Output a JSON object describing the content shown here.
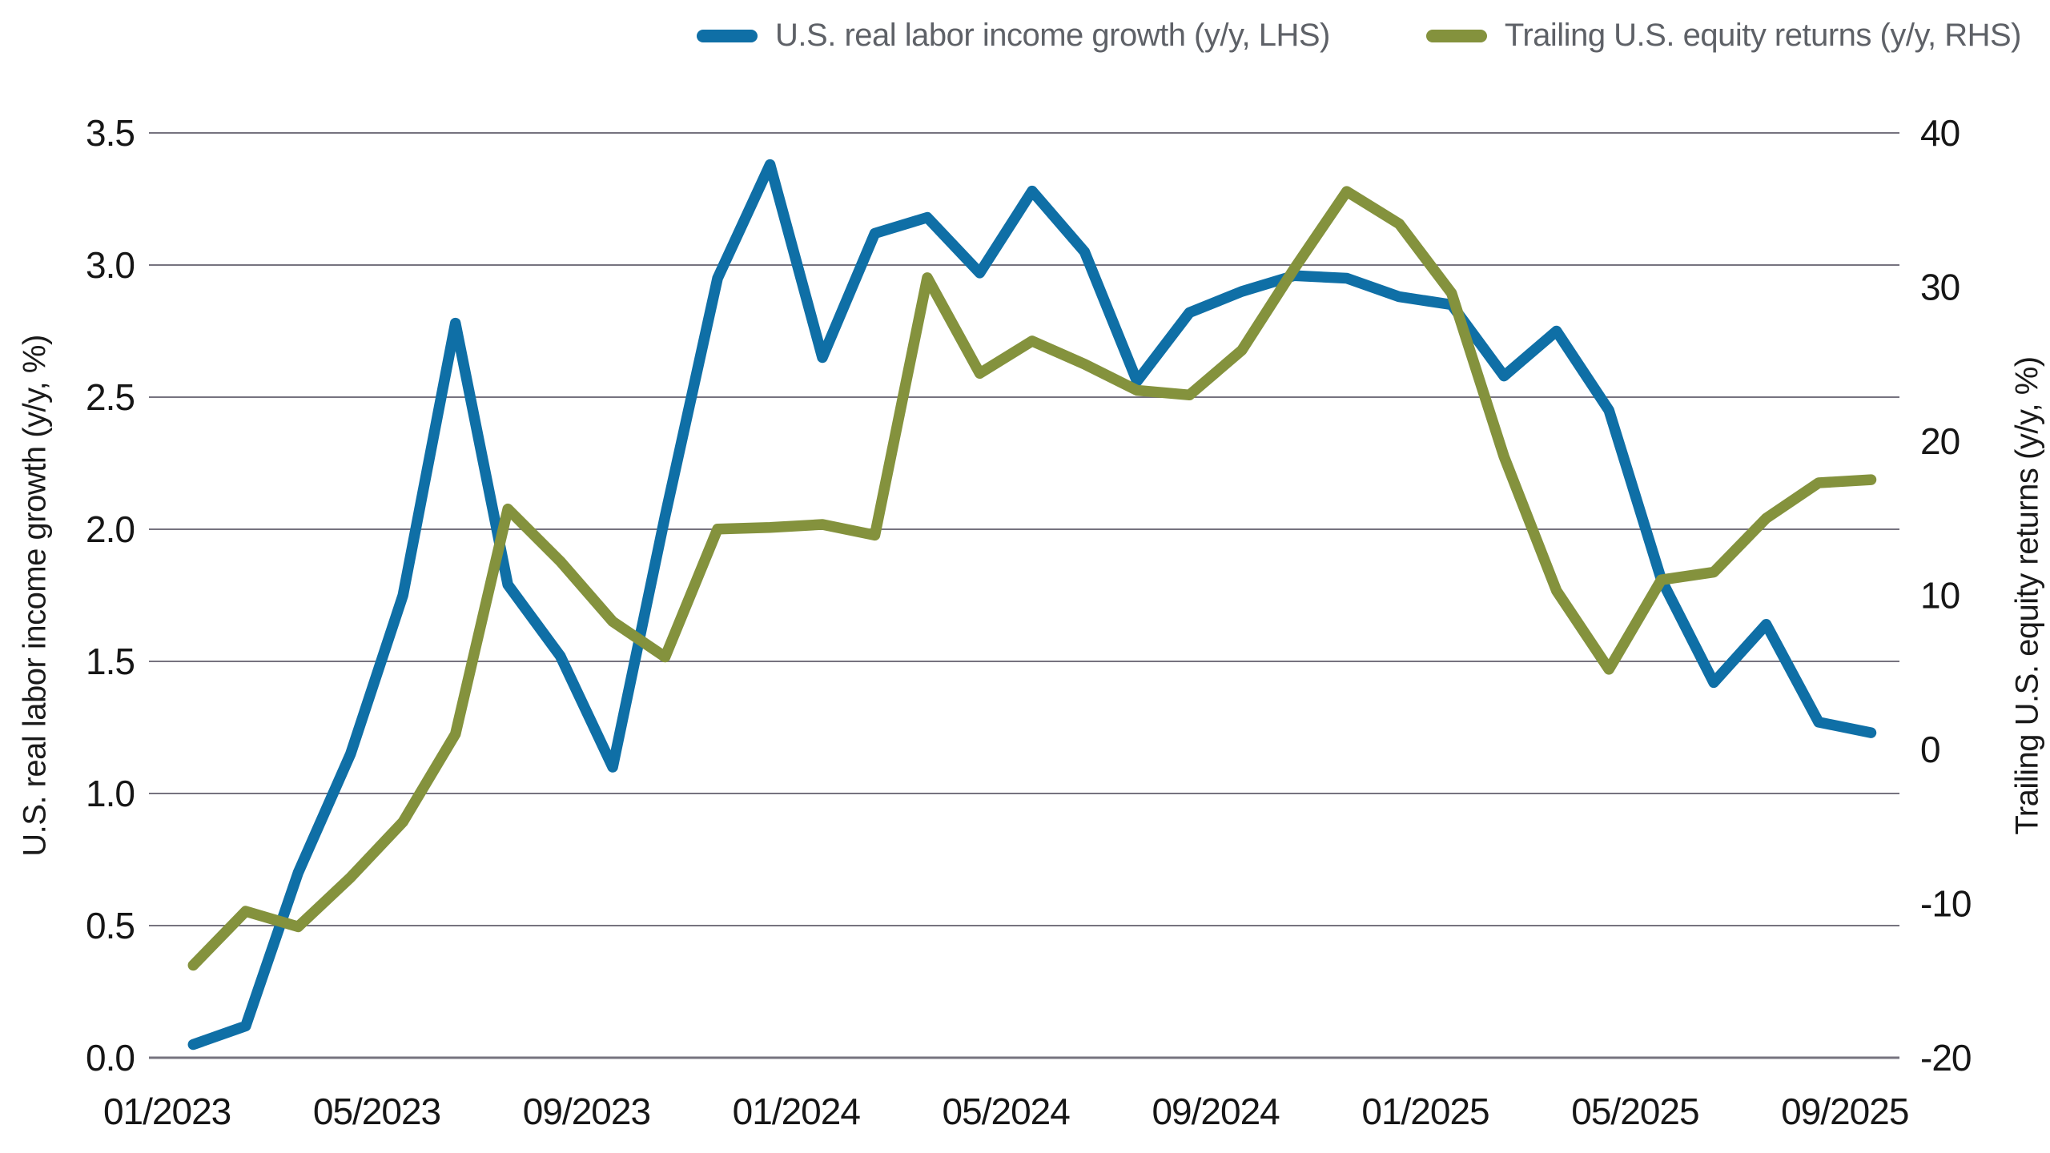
{
  "chart_data": {
    "type": "line",
    "title": "",
    "grid": "horizontal",
    "legend_position": "top-right",
    "grid_color": "#76737f",
    "background_color": "#ffffff",
    "x_categories": [
      "01/2023",
      "02/2023",
      "03/2023",
      "04/2023",
      "05/2023",
      "06/2023",
      "07/2023",
      "08/2023",
      "09/2023",
      "10/2023",
      "11/2023",
      "12/2023",
      "01/2024",
      "02/2024",
      "03/2024",
      "04/2024",
      "05/2024",
      "06/2024",
      "07/2024",
      "08/2024",
      "09/2024",
      "10/2024",
      "11/2024",
      "12/2024",
      "01/2025",
      "02/2025",
      "03/2025",
      "04/2025",
      "05/2025",
      "06/2025",
      "07/2025",
      "08/2025",
      "09/2025"
    ],
    "x_tick_labels": [
      "01/2023",
      "05/2023",
      "09/2023",
      "01/2024",
      "05/2024",
      "09/2024",
      "01/2025",
      "05/2025",
      "09/2025"
    ],
    "x_tick_indices": [
      0,
      4,
      8,
      12,
      16,
      20,
      24,
      28,
      32
    ],
    "left_axis": {
      "label": "U.S. real labor income growth (y/y, %)",
      "min": 0.0,
      "max": 3.5,
      "ticks": [
        3.5,
        3.0,
        2.5,
        2.0,
        1.5,
        1.0,
        0.5,
        0.0
      ],
      "tick_labels": [
        "3.5",
        "3.0",
        "2.5",
        "2.0",
        "1.5",
        "1.0",
        "0.5",
        "0.0"
      ]
    },
    "right_axis": {
      "label": "Trailing U.S. equity returns (y/y, %)",
      "min": -20,
      "max": 40,
      "ticks": [
        40,
        30,
        20,
        10,
        0,
        -10,
        -20
      ],
      "tick_labels": [
        "40",
        "30",
        "20",
        "10",
        "0",
        "-10",
        "-20"
      ]
    },
    "series": [
      {
        "name": "U.S. real labor income growth (y/y, LHS)",
        "axis": "left",
        "color": "#0f6fa6",
        "values": [
          0.05,
          0.12,
          0.7,
          1.15,
          1.75,
          2.78,
          1.79,
          1.52,
          1.1,
          2.05,
          2.95,
          3.38,
          2.65,
          3.12,
          3.18,
          2.97,
          3.28,
          3.05,
          2.56,
          2.82,
          2.9,
          2.96,
          2.95,
          2.88,
          2.85,
          2.58,
          2.75,
          2.45,
          1.81,
          1.42,
          1.64,
          1.27,
          1.23
        ]
      },
      {
        "name": "Trailing U.S. equity returns (y/y, RHS)",
        "axis": "right",
        "color": "#84923d",
        "values": [
          -14.0,
          -10.5,
          -11.5,
          -8.3,
          -4.7,
          1.0,
          15.6,
          12.2,
          8.3,
          6.0,
          14.3,
          14.4,
          14.6,
          13.9,
          30.6,
          24.4,
          26.5,
          25.0,
          23.3,
          23.0,
          25.9,
          31.2,
          36.2,
          34.1,
          29.6,
          19.0,
          10.3,
          5.2,
          11.0,
          11.5,
          15.0,
          17.3,
          17.5
        ]
      }
    ]
  }
}
